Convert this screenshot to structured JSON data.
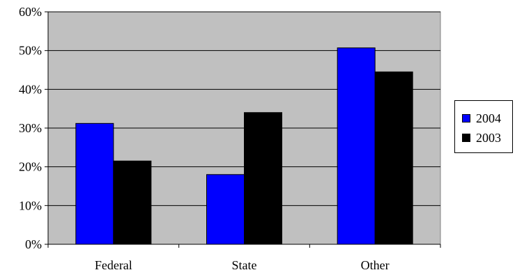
{
  "chart_data": {
    "type": "bar",
    "categories": [
      "Federal",
      "State",
      "Other"
    ],
    "series": [
      {
        "name": "2004",
        "values": [
          31.2,
          18.0,
          50.7
        ],
        "color": "#0000ff"
      },
      {
        "name": "2003",
        "values": [
          21.5,
          34.0,
          44.5
        ],
        "color": "#000000"
      }
    ],
    "ylim": [
      0,
      60
    ],
    "yticks": [
      "0%",
      "10%",
      "20%",
      "30%",
      "40%",
      "50%",
      "60%"
    ],
    "grid": true,
    "legend_position": "right",
    "plot_background": "#c0c0c0",
    "title": "",
    "xlabel": "",
    "ylabel": ""
  }
}
